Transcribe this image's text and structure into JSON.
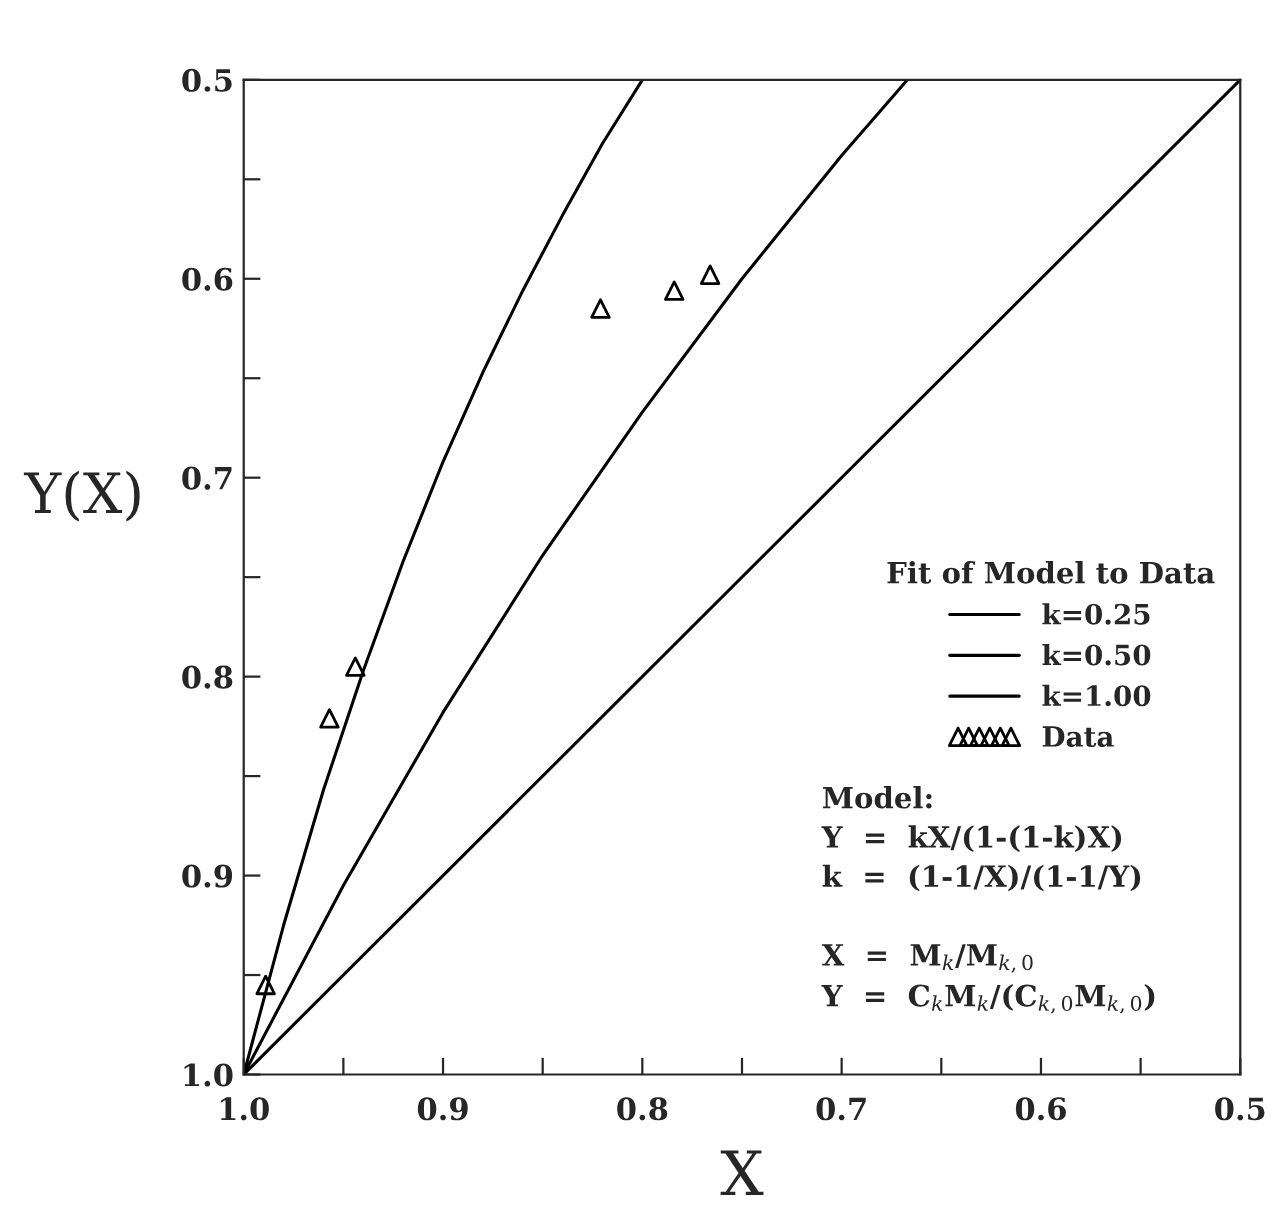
{
  "chart_data": {
    "type": "line",
    "xlabel": "X",
    "ylabel": "Y(X)",
    "legend_title": "Fit of Model to Data",
    "xlim": [
      1.0,
      0.5
    ],
    "ylim": [
      1.0,
      0.5
    ],
    "xticks": [
      {
        "value": 1.0,
        "label": "1.0"
      },
      {
        "value": 0.95,
        "label": null
      },
      0.9,
      {
        "value": 0.85,
        "label": null
      },
      0.8,
      {
        "value": 0.75,
        "label": null
      },
      0.7,
      {
        "value": 0.65,
        "label": null
      },
      0.6,
      {
        "value": 0.55,
        "label": null
      },
      0.5
    ],
    "yticks": [
      {
        "value": 1.0,
        "label": "1.0"
      },
      {
        "value": 0.95,
        "label": null
      },
      0.9,
      {
        "value": 0.85,
        "label": null
      },
      0.8,
      {
        "value": 0.75,
        "label": null
      },
      0.7,
      {
        "value": 0.65,
        "label": null
      },
      0.6,
      {
        "value": 0.55,
        "label": null
      },
      0.5
    ],
    "series": [
      {
        "name": "k=0.25",
        "color": "#000000",
        "x": [
          1.0,
          0.98,
          0.96,
          0.94,
          0.92,
          0.9,
          0.88,
          0.86,
          0.84,
          0.82,
          0.8
        ],
        "values": [
          1.0,
          0.925,
          0.857,
          0.797,
          0.742,
          0.692,
          0.647,
          0.606,
          0.568,
          0.532,
          0.5
        ]
      },
      {
        "name": "k=0.50",
        "color": "#000000",
        "x": [
          1.0,
          0.95,
          0.9,
          0.85,
          0.8,
          0.75,
          0.7,
          0.667
        ],
        "values": [
          1.0,
          0.905,
          0.818,
          0.739,
          0.667,
          0.6,
          0.538,
          0.5
        ]
      },
      {
        "name": "k=1.00",
        "color": "#000000",
        "x": [
          1.0,
          0.5
        ],
        "values": [
          1.0,
          0.5
        ]
      },
      {
        "name": "Data",
        "type": "scatter",
        "marker": "triangle",
        "color": "#000000",
        "x": [
          0.989,
          0.957,
          0.944,
          0.821,
          0.784,
          0.766
        ],
        "values": [
          0.955,
          0.821,
          0.795,
          0.615,
          0.606,
          0.598
        ]
      }
    ],
    "legend": "right",
    "grid": false,
    "annotations": [
      "Model:\nY  =  kX/(1-(1-k)X)\nk  =  (1-1/X)/(1-1/Y)\n\nX  =  M$_{k}$/M$_{k,0}$\nY  =  C$_{k}$M$_{k}$/(C$_{k,0}$M$_{k,0}$)"
    ]
  }
}
